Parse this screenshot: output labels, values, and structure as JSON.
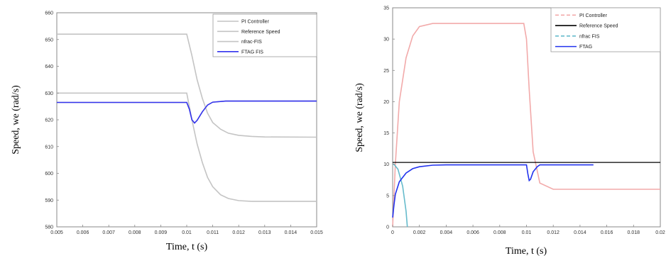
{
  "chart_data": [
    {
      "type": "line",
      "title": "",
      "xlabel": "Time, t (s)",
      "ylabel": "Speed, we (rad/s)",
      "xlim": [
        0.005,
        0.015
      ],
      "ylim": [
        580,
        660
      ],
      "xticks": [
        0.005,
        0.006,
        0.007,
        0.008,
        0.009,
        0.01,
        0.011,
        0.012,
        0.013,
        0.014,
        0.015
      ],
      "xtick_labels": [
        "0.005",
        "0.006",
        "0.007",
        "0.008",
        "0.009",
        "0.01",
        "0.011",
        "0.012",
        "0.013",
        "0.014",
        "0.015"
      ],
      "yticks": [
        580,
        590,
        600,
        610,
        620,
        630,
        640,
        650,
        660
      ],
      "ytick_labels": [
        "580",
        "590",
        "600",
        "610",
        "620",
        "630",
        "640",
        "650",
        "660"
      ],
      "grid": false,
      "legend": "top-right",
      "series": [
        {
          "name": "PI Controller",
          "color": "#c4c4c4",
          "dash": "solid",
          "x": [
            0.005,
            0.01,
            0.0102,
            0.0104,
            0.0106,
            0.0108,
            0.011,
            0.0113,
            0.0116,
            0.012,
            0.0125,
            0.013,
            0.015
          ],
          "y": [
            652,
            652,
            644,
            635,
            628,
            622.5,
            619,
            616.5,
            615,
            614.2,
            613.8,
            613.6,
            613.5
          ]
        },
        {
          "name": "Reference Speed",
          "color": "#c4c4c4",
          "dash": "solid",
          "x": [
            0.005,
            0.01,
            0.0102,
            0.0104,
            0.0106,
            0.0108,
            0.011,
            0.0113,
            0.0116,
            0.012,
            0.0125,
            0.013,
            0.015
          ],
          "y": [
            630,
            630,
            620,
            611,
            604,
            598.5,
            595,
            592,
            590.6,
            589.8,
            589.5,
            589.5,
            589.5
          ]
        },
        {
          "name": "nfrac-FIS",
          "color": "#c4c4c4",
          "dash": "solid",
          "x": [
            0.005,
            0.01,
            0.0101,
            0.0102,
            0.0103,
            0.0104,
            0.0106,
            0.0108,
            0.011,
            0.0115,
            0.015
          ],
          "y": [
            626.5,
            626.5,
            624,
            620,
            618.8,
            619.8,
            623,
            625.5,
            626.6,
            627,
            627
          ]
        },
        {
          "name": "FTAG FIS",
          "color": "#3333ee",
          "dash": "solid",
          "x": [
            0.005,
            0.01,
            0.0101,
            0.0102,
            0.0103,
            0.0104,
            0.0106,
            0.0108,
            0.011,
            0.0115,
            0.015
          ],
          "y": [
            626.5,
            626.5,
            624,
            620,
            618.8,
            619.8,
            623,
            625.5,
            626.6,
            627,
            627
          ]
        }
      ]
    },
    {
      "type": "line",
      "title": "",
      "xlabel": "Time, t (s)",
      "ylabel": "Speed, we (rad/s)",
      "xlim": [
        0,
        0.02
      ],
      "ylim": [
        0,
        35
      ],
      "xticks": [
        0,
        0.002,
        0.004,
        0.006,
        0.008,
        0.01,
        0.012,
        0.014,
        0.016,
        0.018,
        0.02
      ],
      "xtick_labels": [
        "0",
        "0.002",
        "0.004",
        "0.006",
        "0.008",
        "0.01",
        "0.012",
        "0.014",
        "0.016",
        "0.018",
        "0.02"
      ],
      "yticks": [
        0,
        5,
        10,
        15,
        20,
        25,
        30,
        35
      ],
      "ytick_labels": [
        "0",
        "5",
        "10",
        "15",
        "20",
        "25",
        "30",
        "35"
      ],
      "grid": false,
      "legend": "top-right",
      "series": [
        {
          "name": "PI Controller",
          "color": "#f2aaaa",
          "dash": "dashed",
          "x": [
            0,
            0.0002,
            0.0005,
            0.001,
            0.0015,
            0.002,
            0.003,
            0.005,
            0.0098,
            0.01,
            0.0102,
            0.0105,
            0.011,
            0.012,
            0.02
          ],
          "y": [
            0,
            10,
            20,
            27,
            30.5,
            32,
            32.5,
            32.5,
            32.5,
            30,
            22,
            12,
            7,
            6,
            6
          ]
        },
        {
          "name": "Reference Speed",
          "color": "#000000",
          "dash": "solid",
          "x": [
            0,
            0.02
          ],
          "y": [
            10.3,
            10.3
          ]
        },
        {
          "name": "nfrac FIS",
          "color": "#66bbcc",
          "dash": "dashed",
          "x": [
            0,
            0.0001,
            0.0004,
            0.00075,
            0.001,
            0.0011
          ],
          "y": [
            10,
            10,
            9.2,
            6.5,
            2.5,
            0
          ]
        },
        {
          "name": "FTAG",
          "color": "#2233ee",
          "dash": "solid",
          "x": [
            0,
            0.0001,
            0.0002,
            0.0005,
            0.001,
            0.0015,
            0.002,
            0.003,
            0.004,
            0.005,
            0.01,
            0.0101,
            0.0102,
            0.0103,
            0.0105,
            0.0108,
            0.011,
            0.015
          ],
          "y": [
            1.5,
            3.5,
            5.2,
            7.2,
            8.6,
            9.3,
            9.6,
            9.85,
            9.9,
            9.9,
            9.9,
            8.5,
            7.4,
            7.6,
            8.8,
            9.6,
            9.9,
            9.9
          ]
        }
      ]
    }
  ]
}
